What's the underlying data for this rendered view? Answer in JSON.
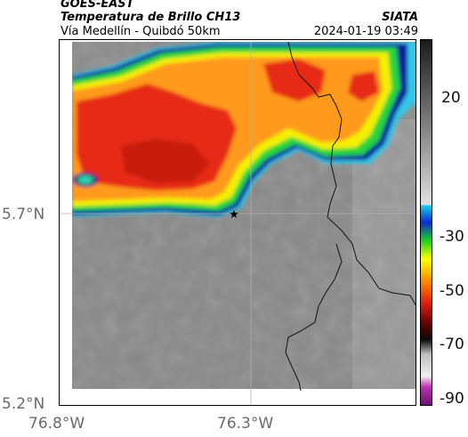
{
  "header": {
    "satellite": "GOES-EAST",
    "product": "Temperatura de Brillo CH13",
    "route": "Vía Medellín - Quibdó 50km",
    "agency": "SIATA",
    "datetime": "2024-01-19 03:49"
  },
  "axes": {
    "y_ticks": [
      "5.7°N",
      "5.2°N"
    ],
    "x_ticks": [
      "76.8°W",
      "76.3°W"
    ]
  },
  "colorbar": {
    "tick_labels": [
      "20",
      "-30",
      "-50",
      "-70",
      "-90"
    ],
    "colors": {
      "warm_gray_top": "#1e1e1e",
      "warm_gray_bottom": "#d8d8d8",
      "cyan": "#19c8e6",
      "blue": "#0a2ad2",
      "green": "#1ed21e",
      "yellow": "#ffff00",
      "orange": "#ff8c00",
      "red": "#e01e10",
      "dark_red": "#5a0000",
      "black": "#0a0a0a",
      "magenta": "#c030b0"
    }
  },
  "map": {
    "marker_icon": "star-marker-icon",
    "colors": {
      "background_gray": "#8a8a8a",
      "cloud_orange": "#ff9a1a",
      "cloud_red": "#e62a12",
      "cloud_yellow": "#f4f000",
      "cloud_green": "#26d43a",
      "cloud_blue": "#0a1a9a",
      "cloud_cyan": "#30c8e8",
      "border_line": "#111111",
      "grid_line": "#b0b0b0"
    }
  }
}
